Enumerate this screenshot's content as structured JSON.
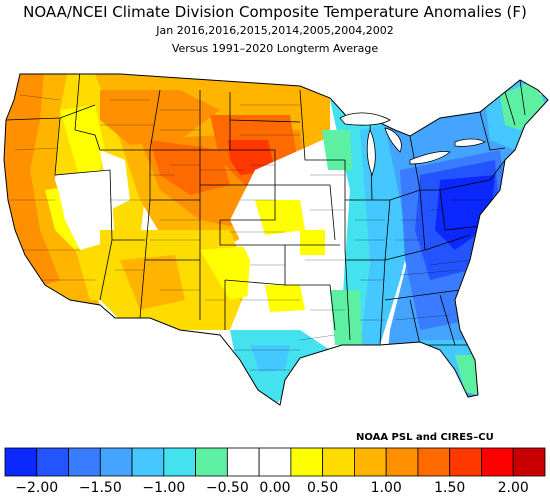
{
  "title": "NOAA/NCEI Climate Division Composite Temperature Anomalies (F)",
  "subtitle": "Jan  2016,2016,2015,2014,2005,2004,2002",
  "baseline": "Versus 1991–2020 Longterm Average",
  "credit": "NOAA PSL and CIRES–CU",
  "legend": {
    "colors": [
      "#0a28ff",
      "#2454ff",
      "#3a7cff",
      "#44a4ff",
      "#44c8ff",
      "#44e2ee",
      "#5ef0a2",
      "#ffffff",
      "#ffffff",
      "#ffff00",
      "#ffdc00",
      "#ffb400",
      "#ff9000",
      "#ff6a00",
      "#ff3800",
      "#ff0000",
      "#c80000"
    ],
    "ticks": [
      "−2.00",
      "−1.50",
      "−1.00",
      "−0.50",
      "0.00",
      "0.50",
      "1.00",
      "1.50",
      "2.00"
    ]
  },
  "map_colors": {
    "orange_dark": "#ff9000",
    "orange": "#ffb400",
    "gold": "#ffdc00",
    "yellow": "#ffff00",
    "red_orange": "#ff6a00",
    "red": "#ff3800",
    "white": "#ffffff",
    "aqua": "#44e2ee",
    "cyan": "#44c8ff",
    "light_blue": "#44a4ff",
    "mid_blue": "#3a7cff",
    "blue": "#2454ff",
    "deep_blue": "#0a28ff",
    "green": "#5ef0a2"
  }
}
